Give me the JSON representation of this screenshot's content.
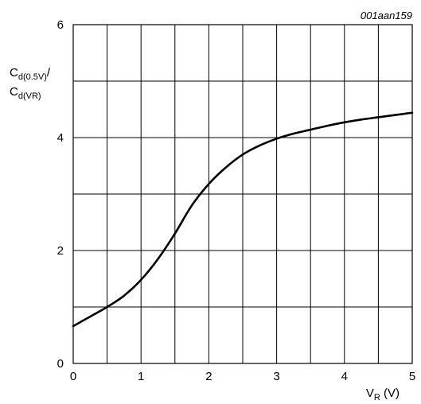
{
  "chart_data": {
    "type": "line",
    "figure_code": "001aan159",
    "ylabel_top": {
      "main": "C",
      "sub": "d(0.5V)",
      "suffix": "/"
    },
    "ylabel_bottom": {
      "main": "C",
      "sub": "d(VR)"
    },
    "xlabel": {
      "main": "V",
      "sub": "R",
      "suffix": " (V)"
    },
    "xlim": [
      0,
      5
    ],
    "ylim": [
      0,
      6
    ],
    "x_ticks": [
      "0",
      "1",
      "2",
      "3",
      "4",
      "5"
    ],
    "y_ticks": [
      "0",
      "2",
      "4",
      "6"
    ],
    "grid": true,
    "x_minor_step": 0.5,
    "y_minor_step": 1,
    "series": [
      {
        "x": [
          0,
          0.25,
          0.5,
          0.75,
          1.0,
          1.25,
          1.5,
          1.75,
          2.0,
          2.25,
          2.5,
          2.75,
          3.0,
          3.25,
          3.5,
          3.75,
          4.0,
          4.25,
          4.5,
          4.75,
          5.0
        ],
        "y": [
          0.66,
          0.83,
          1.0,
          1.2,
          1.48,
          1.85,
          2.3,
          2.8,
          3.18,
          3.47,
          3.7,
          3.86,
          3.98,
          4.07,
          4.14,
          4.21,
          4.27,
          4.32,
          4.36,
          4.4,
          4.44
        ]
      }
    ]
  }
}
